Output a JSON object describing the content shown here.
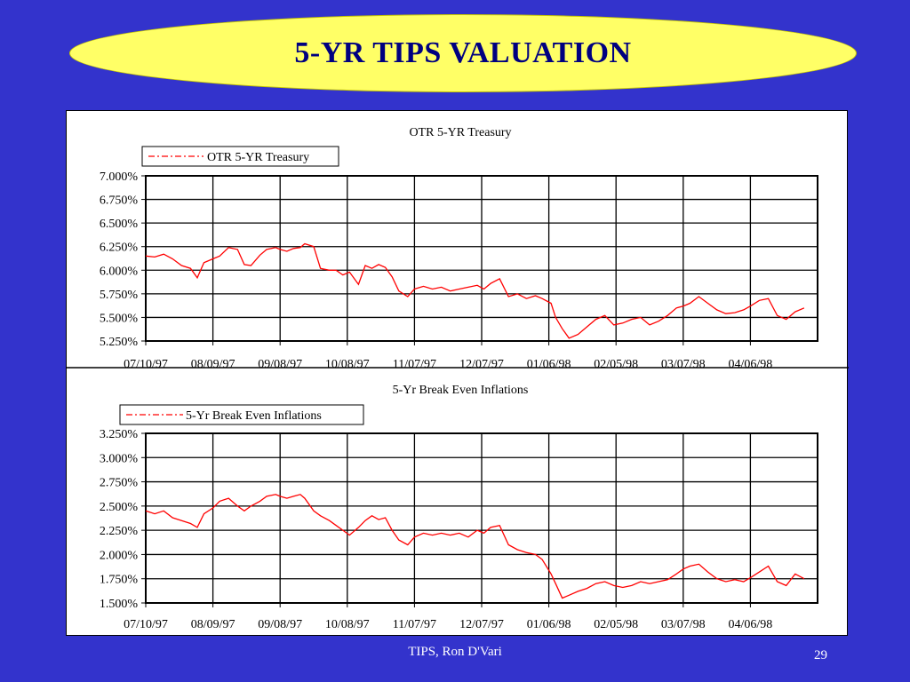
{
  "slide": {
    "title": "5-YR TIPS VALUATION",
    "footer": "TIPS, Ron D'Vari",
    "page_number": "29"
  },
  "chart_data": [
    {
      "type": "line",
      "title": "OTR 5-YR Treasury",
      "legend": "top-left",
      "grid": true,
      "color": "#ff0000",
      "x_ticks": [
        "07/10/97",
        "08/09/97",
        "09/08/97",
        "10/08/97",
        "11/07/97",
        "12/07/97",
        "01/06/98",
        "02/05/98",
        "03/07/98",
        "04/06/98"
      ],
      "y_ticks": [
        "7.000%",
        "6.750%",
        "6.500%",
        "6.250%",
        "6.000%",
        "5.750%",
        "5.500%",
        "5.250%"
      ],
      "ylim": [
        5.25,
        7.0
      ],
      "xlim": [
        "1997-07-10",
        "1998-05-06"
      ],
      "series": [
        {
          "name": "OTR 5-YR Treasury",
          "x": [
            "1997-07-10",
            "1997-07-14",
            "1997-07-18",
            "1997-07-22",
            "1997-07-26",
            "1997-07-30",
            "1997-08-02",
            "1997-08-05",
            "1997-08-09",
            "1997-08-12",
            "1997-08-16",
            "1997-08-20",
            "1997-08-23",
            "1997-08-26",
            "1997-08-30",
            "1997-09-02",
            "1997-09-06",
            "1997-09-08",
            "1997-09-11",
            "1997-09-14",
            "1997-09-17",
            "1997-09-19",
            "1997-09-23",
            "1997-09-26",
            "1997-09-30",
            "1997-10-03",
            "1997-10-06",
            "1997-10-09",
            "1997-10-13",
            "1997-10-16",
            "1997-10-19",
            "1997-10-22",
            "1997-10-25",
            "1997-10-28",
            "1997-10-31",
            "1997-11-04",
            "1997-11-07",
            "1997-11-11",
            "1997-11-15",
            "1997-11-19",
            "1997-11-23",
            "1997-11-27",
            "1997-12-01",
            "1997-12-05",
            "1997-12-08",
            "1997-12-11",
            "1997-12-15",
            "1997-12-19",
            "1997-12-23",
            "1997-12-27",
            "1997-12-31",
            "1998-01-03",
            "1998-01-07",
            "1998-01-09",
            "1998-01-12",
            "1998-01-15",
            "1998-01-19",
            "1998-01-23",
            "1998-01-27",
            "1998-01-31",
            "1998-02-04",
            "1998-02-08",
            "1998-02-12",
            "1998-02-16",
            "1998-02-20",
            "1998-02-24",
            "1998-02-28",
            "1998-03-04",
            "1998-03-07",
            "1998-03-10",
            "1998-03-14",
            "1998-03-18",
            "1998-03-22",
            "1998-03-26",
            "1998-03-30",
            "1998-04-03",
            "1998-04-06",
            "1998-04-10",
            "1998-04-14",
            "1998-04-18",
            "1998-04-22",
            "1998-04-26",
            "1998-04-30"
          ],
          "values": [
            6.15,
            6.14,
            6.17,
            6.12,
            6.05,
            6.02,
            5.92,
            6.08,
            6.12,
            6.15,
            6.24,
            6.22,
            6.06,
            6.05,
            6.16,
            6.22,
            6.24,
            6.22,
            6.2,
            6.23,
            6.24,
            6.28,
            6.25,
            6.02,
            6.0,
            6.0,
            5.95,
            5.98,
            5.85,
            6.05,
            6.02,
            6.06,
            6.03,
            5.93,
            5.78,
            5.72,
            5.8,
            5.83,
            5.8,
            5.82,
            5.78,
            5.8,
            5.82,
            5.84,
            5.8,
            5.86,
            5.91,
            5.72,
            5.75,
            5.7,
            5.73,
            5.7,
            5.65,
            5.5,
            5.38,
            5.28,
            5.32,
            5.4,
            5.48,
            5.52,
            5.42,
            5.44,
            5.48,
            5.5,
            5.42,
            5.46,
            5.52,
            5.6,
            5.62,
            5.65,
            5.72,
            5.65,
            5.58,
            5.54,
            5.55,
            5.58,
            5.62,
            5.68,
            5.7,
            5.52,
            5.48,
            5.56,
            5.6
          ]
        }
      ]
    },
    {
      "type": "line",
      "title": "5-Yr Break Even Inflations",
      "legend": "top-left",
      "grid": true,
      "color": "#ff0000",
      "x_ticks": [
        "07/10/97",
        "08/09/97",
        "09/08/97",
        "10/08/97",
        "11/07/97",
        "12/07/97",
        "01/06/98",
        "02/05/98",
        "03/07/98",
        "04/06/98"
      ],
      "y_ticks": [
        "3.250%",
        "3.000%",
        "2.750%",
        "2.500%",
        "2.250%",
        "2.000%",
        "1.750%",
        "1.500%"
      ],
      "ylim": [
        1.5,
        3.25
      ],
      "xlim": [
        "1997-07-10",
        "1998-05-06"
      ],
      "series": [
        {
          "name": "5-Yr Break Even Inflations",
          "x": [
            "1997-07-10",
            "1997-07-14",
            "1997-07-18",
            "1997-07-22",
            "1997-07-26",
            "1997-07-30",
            "1997-08-02",
            "1997-08-05",
            "1997-08-09",
            "1997-08-12",
            "1997-08-16",
            "1997-08-20",
            "1997-08-23",
            "1997-08-26",
            "1997-08-30",
            "1997-09-02",
            "1997-09-06",
            "1997-09-08",
            "1997-09-11",
            "1997-09-14",
            "1997-09-17",
            "1997-09-19",
            "1997-09-23",
            "1997-09-26",
            "1997-09-30",
            "1997-10-03",
            "1997-10-06",
            "1997-10-09",
            "1997-10-13",
            "1997-10-16",
            "1997-10-19",
            "1997-10-22",
            "1997-10-25",
            "1997-10-28",
            "1997-10-31",
            "1997-11-04",
            "1997-11-07",
            "1997-11-11",
            "1997-11-15",
            "1997-11-19",
            "1997-11-23",
            "1997-11-27",
            "1997-12-01",
            "1997-12-05",
            "1997-12-08",
            "1997-12-11",
            "1997-12-15",
            "1997-12-19",
            "1997-12-23",
            "1997-12-27",
            "1997-12-31",
            "1998-01-03",
            "1998-01-07",
            "1998-01-09",
            "1998-01-12",
            "1998-01-15",
            "1998-01-19",
            "1998-01-23",
            "1998-01-27",
            "1998-01-31",
            "1998-02-04",
            "1998-02-08",
            "1998-02-12",
            "1998-02-16",
            "1998-02-20",
            "1998-02-24",
            "1998-02-28",
            "1998-03-04",
            "1998-03-07",
            "1998-03-10",
            "1998-03-14",
            "1998-03-18",
            "1998-03-22",
            "1998-03-26",
            "1998-03-30",
            "1998-04-03",
            "1998-04-06",
            "1998-04-10",
            "1998-04-14",
            "1998-04-18",
            "1998-04-22",
            "1998-04-26",
            "1998-04-30"
          ],
          "values": [
            2.45,
            2.42,
            2.45,
            2.38,
            2.35,
            2.32,
            2.28,
            2.42,
            2.48,
            2.55,
            2.58,
            2.5,
            2.45,
            2.5,
            2.55,
            2.6,
            2.62,
            2.6,
            2.58,
            2.6,
            2.62,
            2.58,
            2.45,
            2.4,
            2.35,
            2.3,
            2.25,
            2.2,
            2.28,
            2.35,
            2.4,
            2.36,
            2.38,
            2.25,
            2.15,
            2.1,
            2.18,
            2.22,
            2.2,
            2.22,
            2.2,
            2.22,
            2.18,
            2.25,
            2.22,
            2.28,
            2.3,
            2.1,
            2.05,
            2.02,
            2.0,
            1.95,
            1.8,
            1.7,
            1.55,
            1.58,
            1.62,
            1.65,
            1.7,
            1.72,
            1.68,
            1.66,
            1.68,
            1.72,
            1.7,
            1.72,
            1.74,
            1.8,
            1.85,
            1.88,
            1.9,
            1.82,
            1.75,
            1.72,
            1.74,
            1.72,
            1.76,
            1.82,
            1.88,
            1.72,
            1.68,
            1.8,
            1.75
          ]
        }
      ]
    }
  ]
}
